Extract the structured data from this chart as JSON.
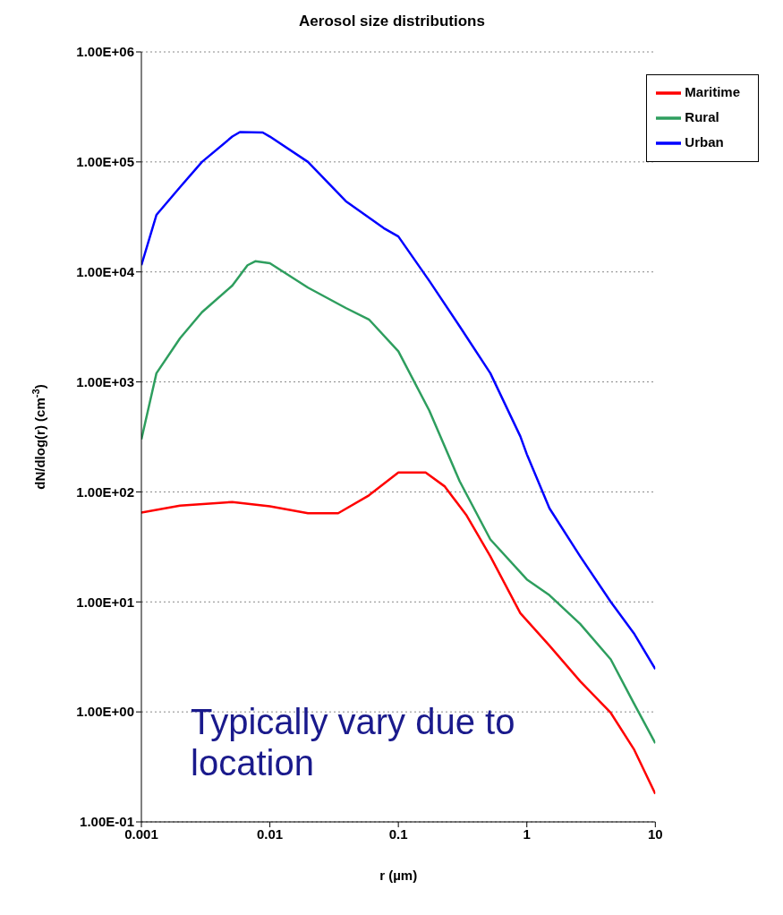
{
  "chart_data": {
    "type": "line",
    "title": "Aerosol size distributions",
    "xlabel": "r (µm)",
    "ylabel": "dN/dlog(r) (cm$^{-3}$)",
    "log": "xy",
    "grid": "y",
    "legend": "top right",
    "marker": "none",
    "line_style": "solid",
    "xlim": [
      0.001,
      10
    ],
    "xticks": [
      0.001,
      0.01,
      0.1,
      1,
      10
    ],
    "ylim": [
      0.1,
      1000000
    ],
    "yticks": [
      {
        "value": 0.1,
        "label": "1.00E-01"
      },
      {
        "value": 1,
        "label": "1.00E+00"
      },
      {
        "value": 10,
        "label": "1.00E+01"
      },
      {
        "value": 100,
        "label": "1.00E+02"
      },
      {
        "value": 1000,
        "label": "1.00E+03"
      },
      {
        "value": 10000,
        "label": "1.00E+04"
      },
      {
        "value": 100000,
        "label": "1.00E+05"
      },
      {
        "value": 1000000,
        "label": "1.00E+06"
      }
    ],
    "annotations": [
      "Typically vary due to location"
    ],
    "series": [
      {
        "name": "Urban",
        "color": "#0000ff",
        "x": [
          0.001,
          0.00131,
          0.002,
          0.00296,
          0.0051,
          0.00585,
          0.0088,
          0.01,
          0.0198,
          0.039,
          0.077,
          0.1,
          0.174,
          0.3,
          0.52,
          0.89,
          1.0,
          1.5,
          2.6,
          4.5,
          6.8,
          10
        ],
        "values": [
          11500,
          33000,
          59000,
          100000,
          170000,
          187000,
          185000,
          170000,
          100000,
          44000,
          25000,
          21000,
          8300,
          3200,
          1200,
          320,
          220,
          71,
          26,
          10,
          5.2,
          2.45
        ]
      },
      {
        "name": "Rural",
        "color": "#2e9e5e",
        "x": [
          0.001,
          0.00131,
          0.002,
          0.00296,
          0.0051,
          0.0067,
          0.0077,
          0.01,
          0.0198,
          0.039,
          0.059,
          0.1,
          0.174,
          0.3,
          0.52,
          1.0,
          1.5,
          2.6,
          4.5,
          6.8,
          10
        ],
        "values": [
          300,
          1200,
          2500,
          4300,
          7500,
          11500,
          12500,
          12000,
          7200,
          4700,
          3700,
          1900,
          550,
          125,
          37,
          16,
          11.5,
          6.3,
          3.0,
          1.2,
          0.52
        ]
      },
      {
        "name": "Maritime",
        "color": "#ff0000",
        "x": [
          0.001,
          0.002,
          0.0051,
          0.01,
          0.0198,
          0.034,
          0.059,
          0.1,
          0.163,
          0.23,
          0.34,
          0.52,
          0.89,
          1.5,
          2.6,
          4.5,
          6.8,
          10
        ],
        "values": [
          65,
          75,
          81,
          74,
          64,
          64,
          93,
          150,
          150,
          112,
          61,
          26,
          7.9,
          4,
          1.9,
          0.98,
          0.46,
          0.18
        ]
      }
    ]
  }
}
